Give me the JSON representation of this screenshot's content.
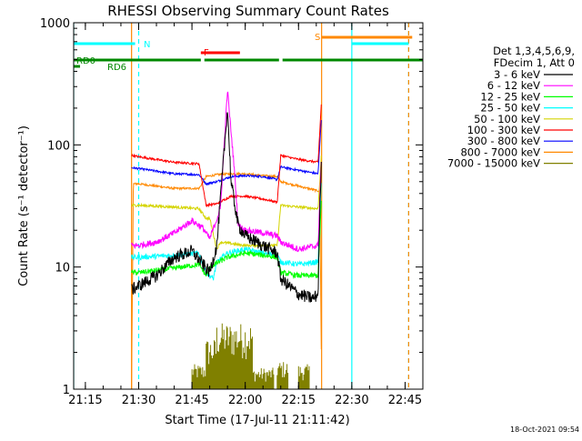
{
  "chart_data": {
    "type": "line",
    "title": "RHESSI Observing Summary Count Rates",
    "xlabel": "Start Time (17-Jul-11 21:11:42)",
    "ylabel": "Count Rate (s⁻¹ detector⁻¹)",
    "yscale": "log",
    "ylim": [
      1,
      1000
    ],
    "xlim": [
      "21:11:42",
      "22:50:00"
    ],
    "x_ticks": [
      "21:15",
      "21:30",
      "21:45",
      "22:00",
      "22:15",
      "22:30",
      "22:45"
    ],
    "y_ticks": [
      "1",
      "10",
      "100",
      "1000"
    ],
    "footer_date": "18-Oct-2021 09:54",
    "legend": {
      "placement": "right",
      "header": [
        "Det 1,3,4,5,6,9,",
        "FDecim 1, Att 0"
      ],
      "entries": [
        {
          "label": "3 - 6 keV",
          "color": "#000000"
        },
        {
          "label": "6 - 12 keV",
          "color": "#ff00ff"
        },
        {
          "label": "12 - 25 keV",
          "color": "#00ff00"
        },
        {
          "label": "25 - 50 keV",
          "color": "#00ffff"
        },
        {
          "label": "50 - 100 keV",
          "color": "#d4d400"
        },
        {
          "label": "100 - 300 keV",
          "color": "#ff0000"
        },
        {
          "label": "300 - 800 keV",
          "color": "#0000ff"
        },
        {
          "label": "800 - 7000 keV",
          "color": "#ff8800"
        },
        {
          "label": "7000 - 15000 keV",
          "color": "#808000"
        }
      ]
    },
    "flags": [
      {
        "label": "N",
        "color": "#00ffff",
        "segments": [
          [
            "21:11:42",
            "21:29:00"
          ],
          [
            "22:30:00",
            "22:46:00"
          ]
        ]
      },
      {
        "label": "S",
        "color": "#ff8800",
        "segments": [
          [
            "22:21:30",
            "22:47:00"
          ]
        ]
      },
      {
        "label": "F",
        "color": "#ff0000",
        "segments": [
          [
            "21:47:30",
            "21:58:30"
          ]
        ]
      },
      {
        "label": "RD0",
        "color": "#008800",
        "segments": [
          [
            "21:11:42",
            "21:47:30"
          ],
          [
            "21:48:30",
            "22:09:30"
          ],
          [
            "22:10:30",
            "22:50:00"
          ]
        ]
      },
      {
        "label": "RD6",
        "color": "#008800",
        "segments": [
          [
            "21:11:42",
            "21:13:30"
          ]
        ]
      }
    ],
    "vlines": [
      {
        "time": "21:11:42",
        "color": "#00ffff",
        "style": "solid"
      },
      {
        "time": "21:30:00",
        "color": "#00ffff",
        "style": "dashed"
      },
      {
        "time": "22:30:00",
        "color": "#00ffff",
        "style": "solid"
      },
      {
        "time": "22:46:00",
        "color": "#00ffff",
        "style": "dashed"
      },
      {
        "time": "21:28:00",
        "color": "#ff8800",
        "style": "solid"
      },
      {
        "time": "22:21:30",
        "color": "#ff8800",
        "style": "solid"
      },
      {
        "time": "22:46:00",
        "color": "#ff8800",
        "style": "dashed"
      }
    ],
    "series": [
      {
        "name": "3 - 6 keV",
        "color": "#000000",
        "noise": 0.12,
        "points": [
          [
            "21:28:00",
            6.5
          ],
          [
            "21:30:00",
            7
          ],
          [
            "21:35:00",
            8.5
          ],
          [
            "21:40:00",
            12
          ],
          [
            "21:45:00",
            13.5
          ],
          [
            "21:50:00",
            9
          ],
          [
            "21:52:00",
            15
          ],
          [
            "21:55:00",
            200
          ],
          [
            "21:56:00",
            50
          ],
          [
            "21:58:00",
            22
          ],
          [
            "22:00:00",
            18
          ],
          [
            "22:05:00",
            15
          ],
          [
            "22:09:00",
            13
          ],
          [
            "22:10:00",
            8
          ],
          [
            "22:15:00",
            6
          ],
          [
            "22:19:00",
            5.5
          ],
          [
            "22:20:30",
            6
          ],
          [
            "22:21:00",
            30
          ],
          [
            "22:21:30",
            80
          ]
        ]
      },
      {
        "name": "6 - 12 keV",
        "color": "#ff00ff",
        "noise": 0.06,
        "points": [
          [
            "21:28:00",
            15
          ],
          [
            "21:30:00",
            15
          ],
          [
            "21:35:00",
            16
          ],
          [
            "21:40:00",
            19
          ],
          [
            "21:45:00",
            24
          ],
          [
            "21:48:00",
            21
          ],
          [
            "21:50:00",
            17
          ],
          [
            "21:53:00",
            30
          ],
          [
            "21:55:00",
            280
          ],
          [
            "21:57:00",
            60
          ],
          [
            "21:58:00",
            22
          ],
          [
            "22:00:00",
            20
          ],
          [
            "22:05:00",
            19
          ],
          [
            "22:09:00",
            18
          ],
          [
            "22:10:00",
            16
          ],
          [
            "22:15:00",
            14
          ],
          [
            "22:20:30",
            15
          ],
          [
            "22:21:30",
            90
          ]
        ]
      },
      {
        "name": "12 - 25 keV",
        "color": "#00ff00",
        "noise": 0.05,
        "points": [
          [
            "21:28:00",
            9
          ],
          [
            "21:30:00",
            9
          ],
          [
            "21:40:00",
            9.8
          ],
          [
            "21:47:00",
            10.5
          ],
          [
            "21:49:00",
            8.5
          ],
          [
            "21:50:00",
            10
          ],
          [
            "21:55:00",
            12
          ],
          [
            "22:00:00",
            13
          ],
          [
            "22:05:00",
            12.5
          ],
          [
            "22:09:00",
            12
          ],
          [
            "22:10:00",
            9
          ],
          [
            "22:15:00",
            8.5
          ],
          [
            "22:20:30",
            8.5
          ],
          [
            "22:21:30",
            40
          ]
        ]
      },
      {
        "name": "25 - 50 keV",
        "color": "#00ffff",
        "noise": 0.05,
        "points": [
          [
            "21:28:00",
            12
          ],
          [
            "21:30:00",
            12
          ],
          [
            "21:40:00",
            12.5
          ],
          [
            "21:47:00",
            13
          ],
          [
            "21:49:00",
            9
          ],
          [
            "21:51:00",
            8
          ],
          [
            "21:52:00",
            11
          ],
          [
            "21:55:00",
            13
          ],
          [
            "22:00:00",
            14
          ],
          [
            "22:05:00",
            13
          ],
          [
            "22:09:00",
            12.5
          ],
          [
            "22:10:00",
            11
          ],
          [
            "22:15:00",
            10.5
          ],
          [
            "22:20:30",
            11
          ],
          [
            "22:21:30",
            60
          ]
        ]
      },
      {
        "name": "50 - 100 keV",
        "color": "#d4d400",
        "noise": 0.025,
        "points": [
          [
            "21:28:00",
            32
          ],
          [
            "21:30:00",
            32
          ],
          [
            "21:40:00",
            31
          ],
          [
            "21:47:00",
            30
          ],
          [
            "21:49:00",
            25
          ],
          [
            "21:50:00",
            25
          ],
          [
            "21:52:00",
            14
          ],
          [
            "21:53:00",
            16
          ],
          [
            "22:00:00",
            15
          ],
          [
            "22:05:00",
            15
          ],
          [
            "22:09:00",
            15
          ],
          [
            "22:10:00",
            32
          ],
          [
            "22:15:00",
            31
          ],
          [
            "22:20:30",
            30
          ],
          [
            "22:21:30",
            90
          ]
        ]
      },
      {
        "name": "100 - 300 keV",
        "color": "#ff0000",
        "noise": 0.02,
        "points": [
          [
            "21:28:00",
            82
          ],
          [
            "21:30:00",
            80
          ],
          [
            "21:40:00",
            72
          ],
          [
            "21:47:00",
            70
          ],
          [
            "21:49:00",
            32
          ],
          [
            "21:52:00",
            33
          ],
          [
            "21:56:00",
            38
          ],
          [
            "22:00:00",
            38
          ],
          [
            "22:05:00",
            36
          ],
          [
            "22:09:00",
            34
          ],
          [
            "22:10:00",
            82
          ],
          [
            "22:15:00",
            76
          ],
          [
            "22:20:30",
            72
          ],
          [
            "22:21:30",
            240
          ]
        ]
      },
      {
        "name": "300 - 800 keV",
        "color": "#0000ff",
        "noise": 0.02,
        "points": [
          [
            "21:28:00",
            65
          ],
          [
            "21:30:00",
            64
          ],
          [
            "21:40:00",
            58
          ],
          [
            "21:47:00",
            57
          ],
          [
            "21:49:00",
            48
          ],
          [
            "21:52:00",
            50
          ],
          [
            "21:56:00",
            55
          ],
          [
            "22:00:00",
            56
          ],
          [
            "22:05:00",
            55
          ],
          [
            "22:09:00",
            52
          ],
          [
            "22:10:00",
            66
          ],
          [
            "22:15:00",
            62
          ],
          [
            "22:20:30",
            58
          ],
          [
            "22:21:30",
            180
          ]
        ]
      },
      {
        "name": "800 - 7000 keV",
        "color": "#ff8800",
        "noise": 0.02,
        "points": [
          [
            "21:28:00",
            1
          ],
          [
            "21:28:30",
            48
          ],
          [
            "21:30:00",
            48
          ],
          [
            "21:40:00",
            44
          ],
          [
            "21:47:00",
            44
          ],
          [
            "21:49:00",
            55
          ],
          [
            "21:52:00",
            57
          ],
          [
            "21:56:00",
            58
          ],
          [
            "22:00:00",
            58
          ],
          [
            "22:05:00",
            56
          ],
          [
            "22:09:00",
            55
          ],
          [
            "22:10:00",
            50
          ],
          [
            "22:15:00",
            46
          ],
          [
            "22:20:30",
            42
          ],
          [
            "22:21:00",
            42
          ],
          [
            "22:21:30",
            1
          ]
        ]
      },
      {
        "name": "7000 - 15000 keV",
        "color": "#808000",
        "noise": 0,
        "bands": [
          [
            "21:45:00",
            "21:49:00",
            1,
            1.6
          ],
          [
            "21:49:00",
            "21:52:00",
            1,
            2.6
          ],
          [
            "21:52:00",
            "22:02:00",
            1,
            3.5
          ],
          [
            "22:02:00",
            "22:08:00",
            1,
            1.5
          ],
          [
            "22:09:00",
            "22:12:00",
            1,
            1.7
          ],
          [
            "22:15:00",
            "22:18:00",
            1,
            1.6
          ]
        ]
      }
    ]
  }
}
